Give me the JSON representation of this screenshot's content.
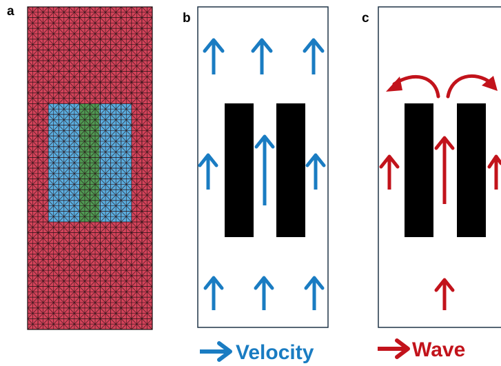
{
  "panels": [
    {
      "id": "a",
      "label": "a"
    },
    {
      "id": "b",
      "label": "b"
    },
    {
      "id": "c",
      "label": "c"
    }
  ],
  "mesh": {
    "rows": 30,
    "cols": 12,
    "colors": {
      "outer": "#d4435a",
      "inner": "#5aaee0",
      "core": "#4f9a53",
      "lines": "#2a1418"
    }
  },
  "legend": {
    "velocity_label": "Velocity",
    "wave_label": "Wave",
    "velocity_color": "#1a7cc2",
    "wave_color": "#c2131b"
  },
  "colors": {
    "block": "#000000",
    "frame": "#1f3447"
  }
}
